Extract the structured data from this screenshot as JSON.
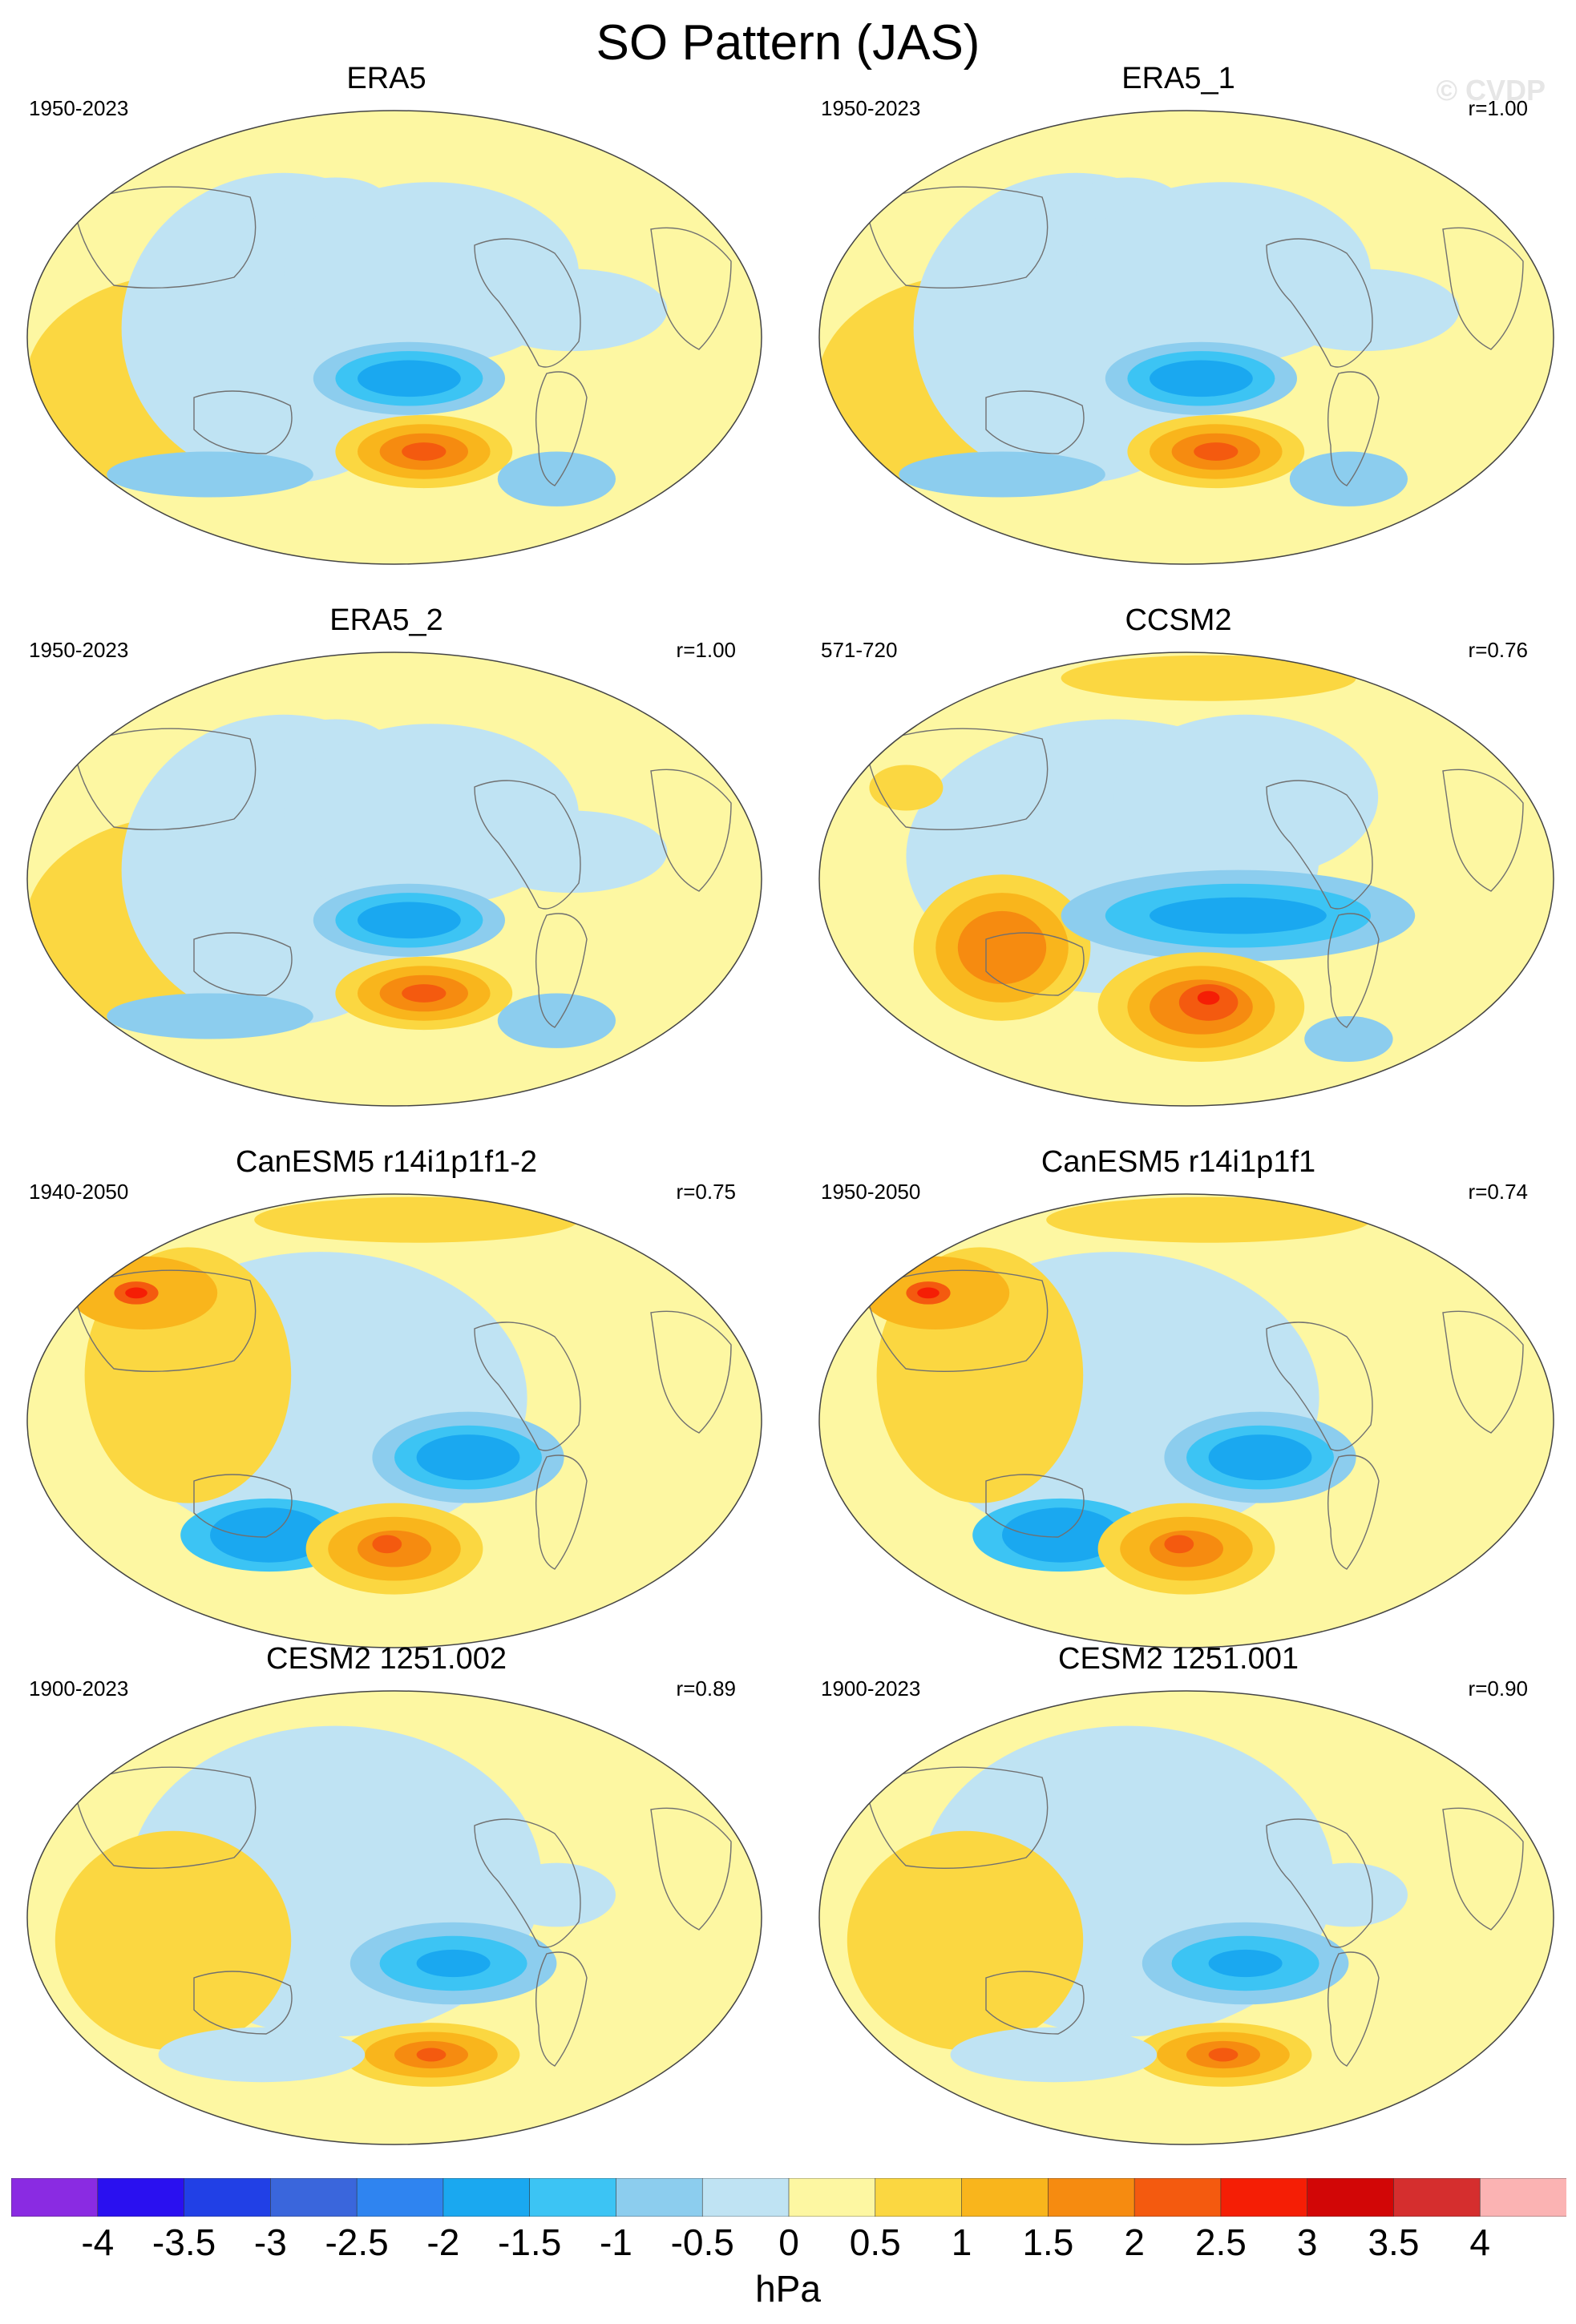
{
  "title": "SO Pattern (JAS)",
  "watermark": "© CVDP",
  "panels": [
    {
      "name": "ERA5",
      "years": "1950-2023",
      "r": ""
    },
    {
      "name": "ERA5_1",
      "years": "1950-2023",
      "r": "r=1.00"
    },
    {
      "name": "ERA5_2",
      "years": "1950-2023",
      "r": "r=1.00"
    },
    {
      "name": "CCSM2",
      "years": "571-720",
      "r": "r=0.76"
    },
    {
      "name": "CanESM5 r14i1p1f1-2",
      "years": "1940-2050",
      "r": "r=0.75"
    },
    {
      "name": "CanESM5 r14i1p1f1",
      "years": "1950-2050",
      "r": "r=0.74"
    },
    {
      "name": "CESM2 1251.002",
      "years": "1900-2023",
      "r": "r=0.89"
    },
    {
      "name": "CESM2 1251.001",
      "years": "1900-2023",
      "r": "r=0.90"
    }
  ],
  "colorbar": {
    "ticks": [
      "-4",
      "-3.5",
      "-3",
      "-2.5",
      "-2",
      "-1.5",
      "-1",
      "-0.5",
      "0",
      "0.5",
      "1",
      "1.5",
      "2",
      "2.5",
      "3",
      "3.5",
      "4"
    ],
    "units": "hPa",
    "colors": [
      "#8a2be2",
      "#2a10f0",
      "#2140e6",
      "#3a66dc",
      "#2f84f0",
      "#1aa8f0",
      "#3cc4f4",
      "#8ccdee",
      "#bfe3f3",
      "#fdf7a2",
      "#fbd741",
      "#f9b51c",
      "#f68b10",
      "#f45a0f",
      "#f51e05",
      "#d20606",
      "#d52e2e",
      "#fbb3b3"
    ]
  }
}
